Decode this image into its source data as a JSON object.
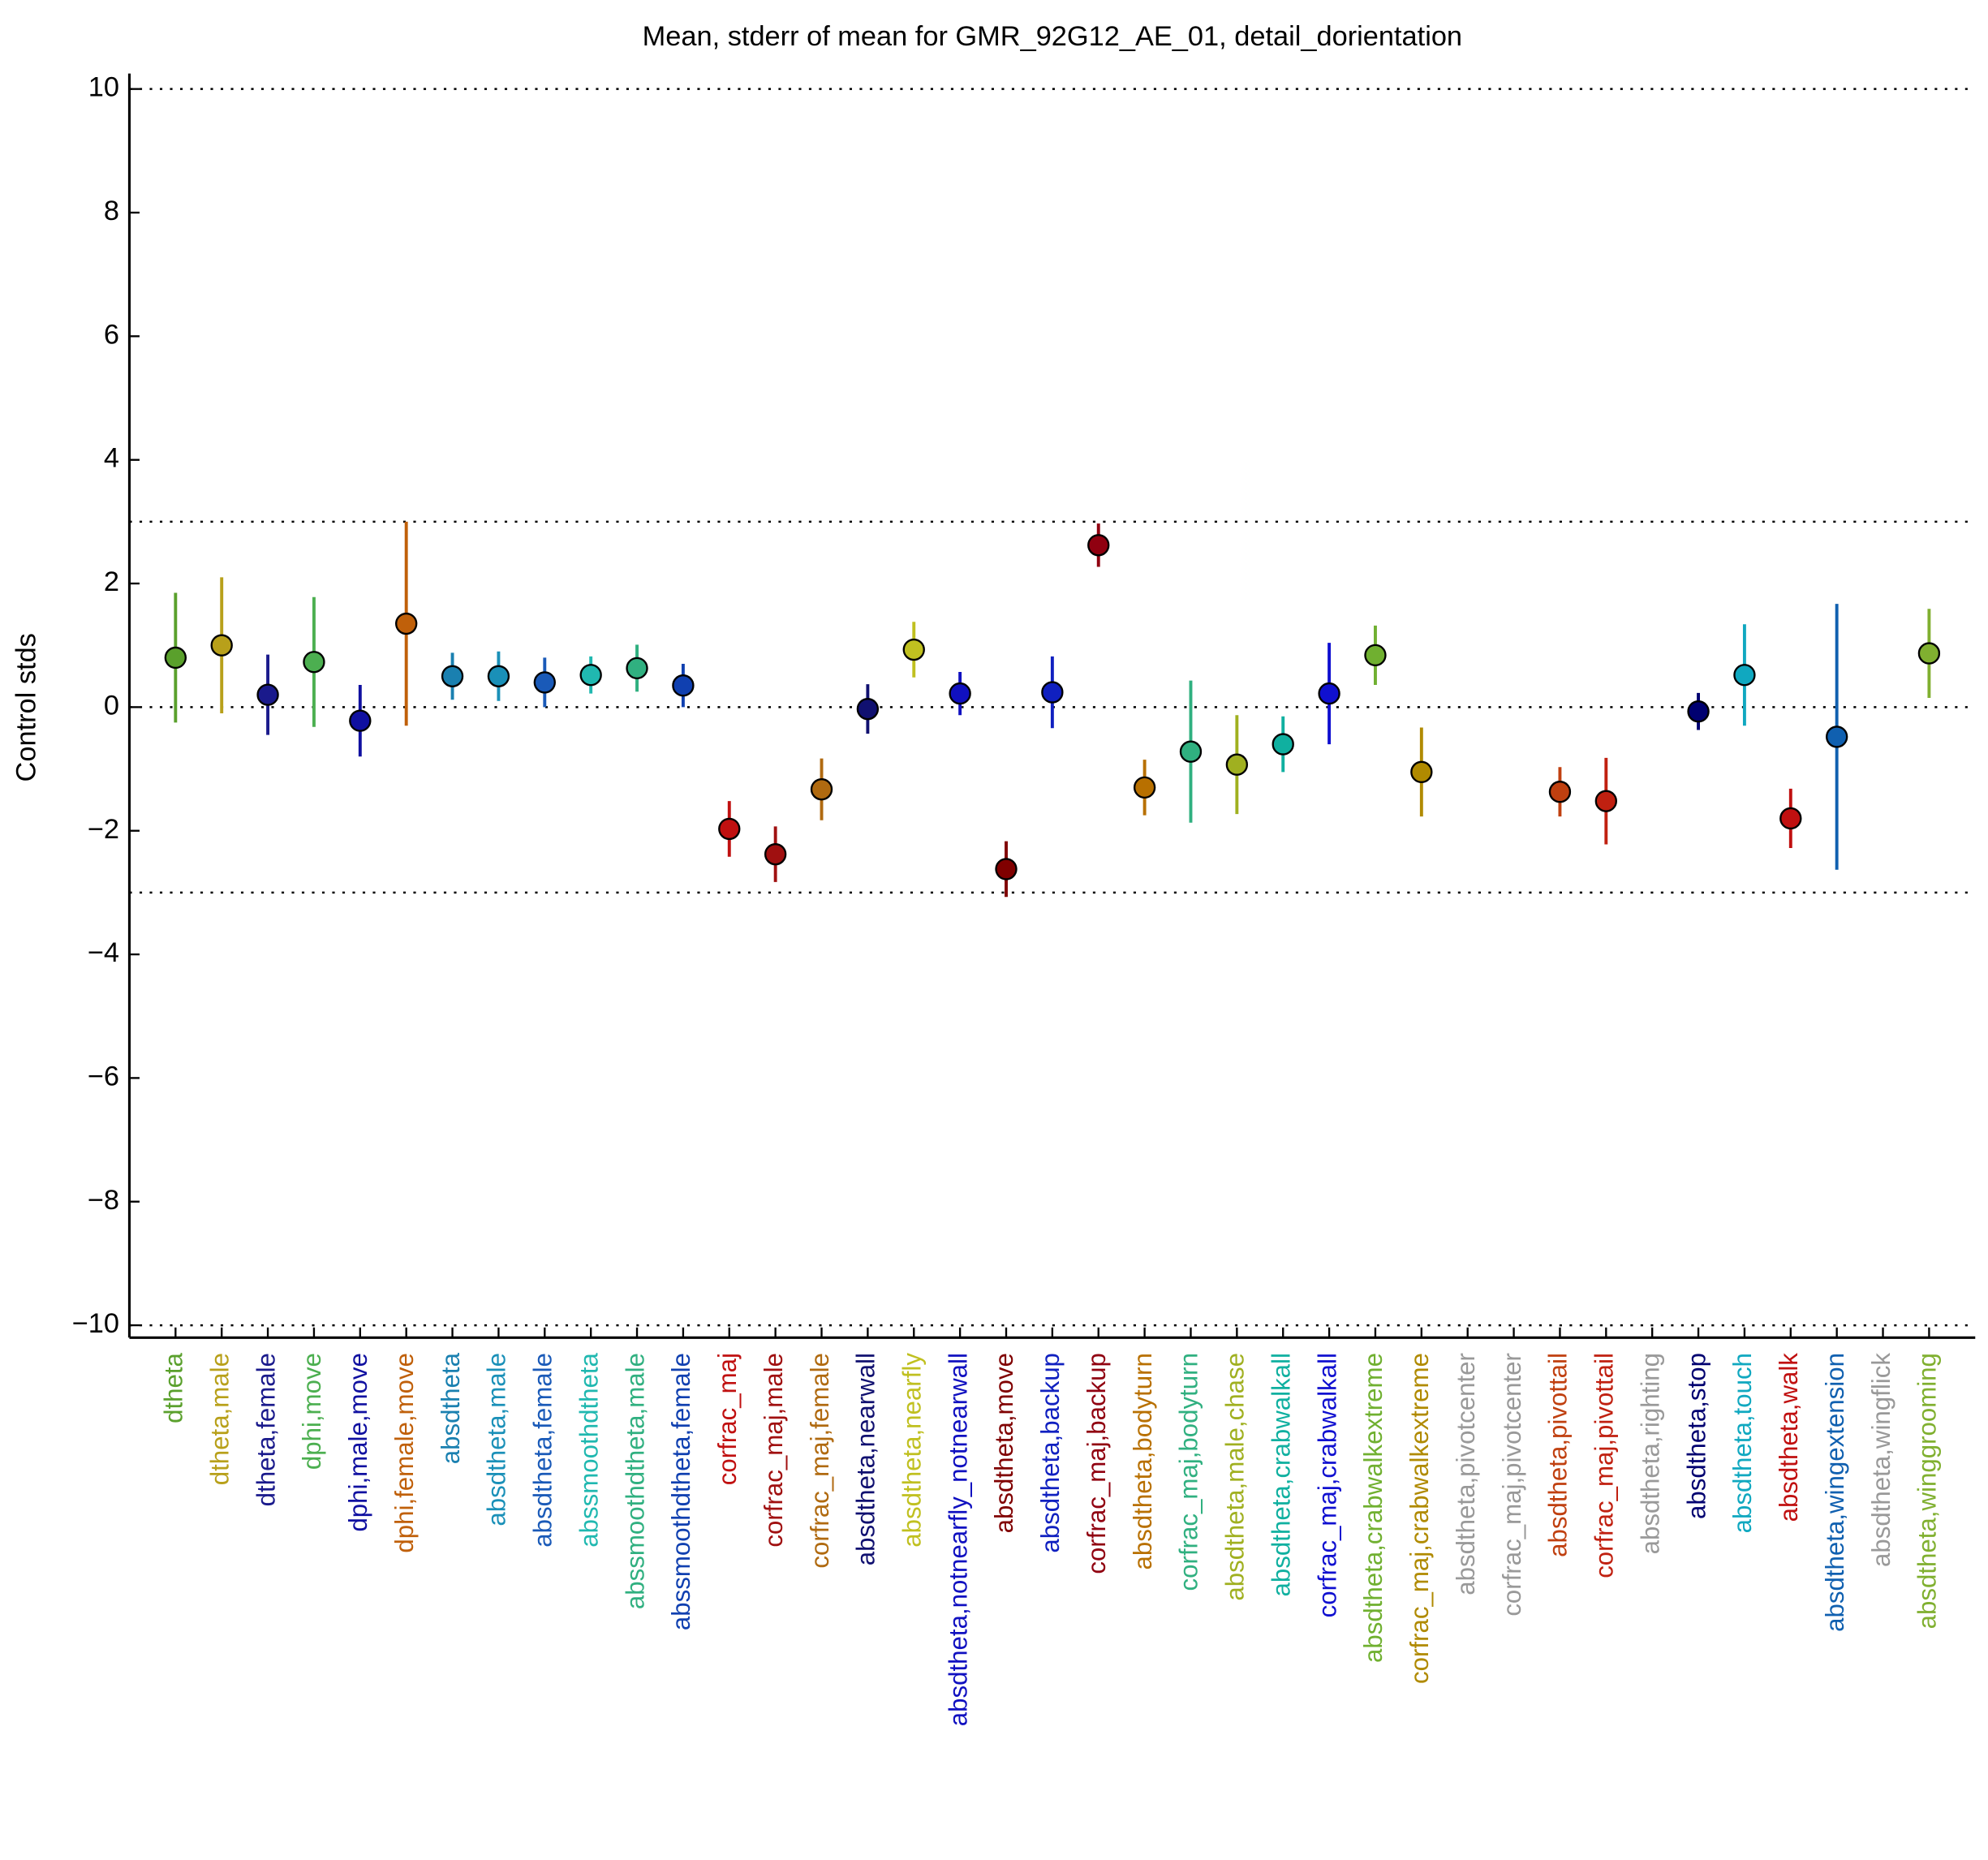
{
  "chart_data": {
    "type": "errorbar",
    "title": "Mean, stderr of mean for GMR_92G12_AE_01, detail_dorientation",
    "y_label": "Control stds",
    "categories": [
      "dtheta",
      "dtheta,male",
      "dtheta,female",
      "dphi,move",
      "dphi,male,move",
      "dphi,female,move",
      "absdtheta",
      "absdtheta,male",
      "absdtheta,female",
      "abssmoothdtheta",
      "abssmoothdtheta,male",
      "abssmoothdtheta,female",
      "corfrac_maj",
      "corfrac_maj,male",
      "corfrac_maj,female",
      "absdtheta,nearwall",
      "absdtheta,nearfly",
      "absdtheta,notnearfly_notnearwall",
      "absdtheta,move",
      "absdtheta,backup",
      "corfrac_maj,backup",
      "absdtheta,bodyturn",
      "corfrac_maj,bodyturn",
      "absdtheta,male,chase",
      "absdtheta,crabwalkall",
      "corfrac_maj,crabwalkall",
      "absdtheta,crabwalkextreme",
      "corfrac_maj,crabwalkextreme",
      "absdtheta,pivotcenter",
      "corfrac_maj,pivotcenter",
      "absdtheta,pivottail",
      "corfrac_maj,pivottail",
      "absdtheta,righting",
      "absdtheta,stop",
      "absdtheta,touch",
      "absdtheta,walk",
      "absdtheta,wingextension",
      "absdtheta,wingflick",
      "absdtheta,winggrooming"
    ],
    "values": [
      0.8,
      1.0,
      0.2,
      0.73,
      -0.22,
      1.35,
      0.5,
      0.5,
      0.4,
      0.52,
      0.63,
      0.35,
      -1.97,
      -2.38,
      -1.33,
      -0.03,
      0.93,
      0.22,
      -2.62,
      0.24,
      2.62,
      -1.3,
      -0.72,
      -0.93,
      -0.6,
      0.22,
      0.84,
      -1.05,
      null,
      null,
      -1.37,
      -1.52,
      null,
      -0.07,
      0.52,
      -1.8,
      -0.48,
      null,
      0.87
    ],
    "errors": [
      1.05,
      1.1,
      0.65,
      1.05,
      0.58,
      1.65,
      0.38,
      0.4,
      0.4,
      0.3,
      0.38,
      0.35,
      0.45,
      0.45,
      0.5,
      0.4,
      0.45,
      0.35,
      0.45,
      0.58,
      0.35,
      0.45,
      1.15,
      0.8,
      0.45,
      0.82,
      0.48,
      0.72,
      null,
      null,
      0.4,
      0.7,
      null,
      0.3,
      0.82,
      0.48,
      2.15,
      null,
      0.72
    ],
    "colors": [
      "#5aa02c",
      "#b8a01a",
      "#1a1a8c",
      "#4caf50",
      "#1010a0",
      "#c0600a",
      "#1a80b0",
      "#1a90b8",
      "#1a5ab8",
      "#20b8b0",
      "#30b080",
      "#1040b0",
      "#c01010",
      "#a01010",
      "#b06a10",
      "#101070",
      "#c0c020",
      "#1010c0",
      "#800000",
      "#1020c0",
      "#900010",
      "#b87000",
      "#30b080",
      "#a0b020",
      "#10b0a0",
      "#1010d0",
      "#70b030",
      "#b08a00",
      "#999999",
      "#999999",
      "#c04010",
      "#c02010",
      "#999999",
      "#000070",
      "#10a8c0",
      "#c01010",
      "#1060b0",
      "#999999",
      "#80b030"
    ],
    "ylim": [
      -10.2,
      10.25
    ],
    "yticks": [
      {
        "value": -10,
        "label": "−10"
      },
      {
        "value": -8,
        "label": "−8"
      },
      {
        "value": -6,
        "label": "−6"
      },
      {
        "value": -4,
        "label": "−4"
      },
      {
        "value": -2,
        "label": "−2"
      },
      0,
      2,
      4,
      6,
      8,
      10
    ],
    "hlines": [
      10,
      3,
      0,
      -3,
      -10
    ]
  }
}
